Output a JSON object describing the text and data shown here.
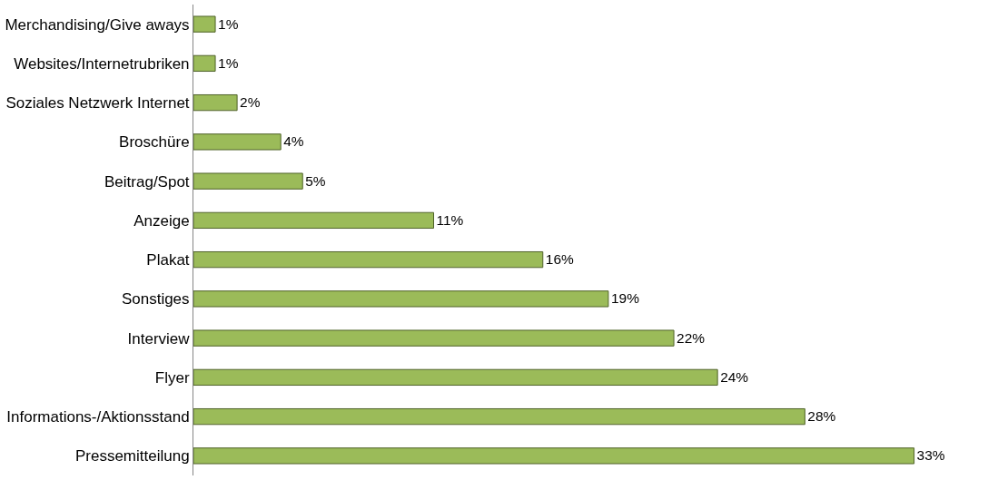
{
  "chart_data": {
    "type": "bar",
    "orientation": "horizontal",
    "categories": [
      "Merchandising/Give aways",
      "Websites/Internetrubriken",
      "Soziales Netzwerk Internet",
      "Broschüre",
      "Beitrag/Spot",
      "Anzeige",
      "Plakat",
      "Sonstiges",
      "Interview",
      "Flyer",
      "Informations-/Aktionsstand",
      "Pressemitteilung"
    ],
    "values": [
      1,
      1,
      2,
      4,
      5,
      11,
      16,
      19,
      22,
      24,
      28,
      33
    ],
    "value_labels": [
      "1%",
      "1%",
      "2%",
      "4%",
      "5%",
      "11%",
      "16%",
      "19%",
      "22%",
      "24%",
      "28%",
      "33%"
    ],
    "color": "#9bbb59"
  }
}
